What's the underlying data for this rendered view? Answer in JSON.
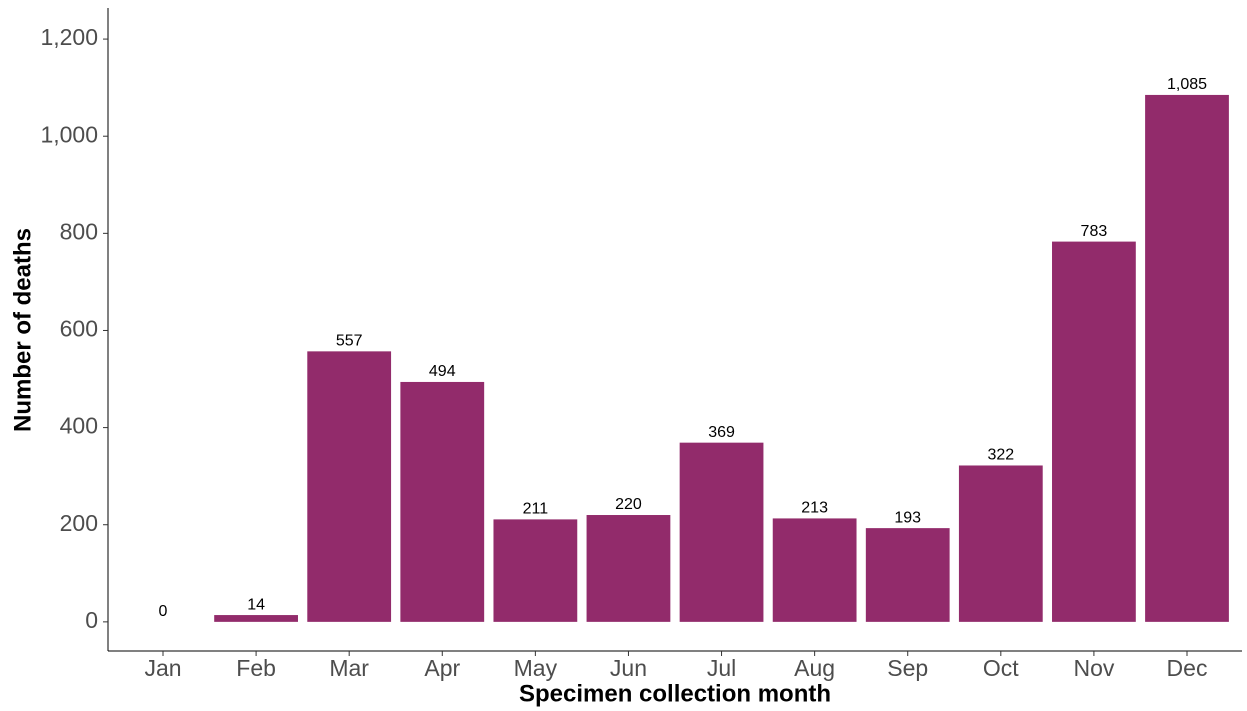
{
  "chart_data": {
    "type": "bar",
    "xlabel": "Specimen collection month",
    "ylabel": "Number of deaths",
    "categories": [
      "Jan",
      "Feb",
      "Mar",
      "Apr",
      "May",
      "Jun",
      "Jul",
      "Aug",
      "Sep",
      "Oct",
      "Nov",
      "Dec"
    ],
    "values": [
      0,
      14,
      557,
      494,
      211,
      220,
      369,
      213,
      193,
      322,
      783,
      1085
    ],
    "value_labels": [
      "0",
      "14",
      "557",
      "494",
      "211",
      "220",
      "369",
      "213",
      "193",
      "322",
      "783",
      "1,085"
    ],
    "color": "#922b6b",
    "ylim": [
      -60,
      1264
    ],
    "yticks": [
      0,
      200,
      400,
      600,
      800,
      {
        "value": 1000,
        "label": "1,000"
      },
      {
        "value": 1200,
        "label": "1,200"
      }
    ],
    "grid": false
  }
}
